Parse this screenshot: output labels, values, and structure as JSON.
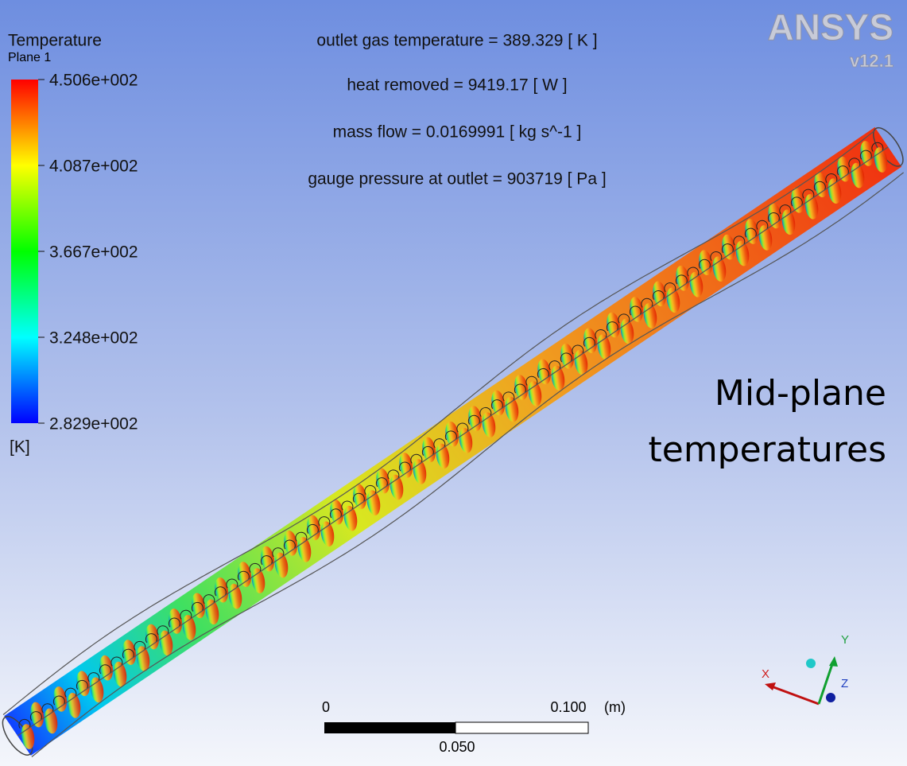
{
  "legend": {
    "title": "Temperature",
    "subtitle": "Plane 1",
    "labels": [
      "4.506e+002",
      "4.087e+002",
      "3.667e+002",
      "3.248e+002",
      "2.829e+002"
    ],
    "unit": "[K]"
  },
  "annotations": [
    "outlet gas temperature = 389.329 [ K ]",
    "heat removed = 9419.17 [ W ]",
    "mass flow = 0.0169991 [ kg s^-1 ]",
    "gauge pressure at outlet = 903719 [ Pa ]"
  ],
  "logo": {
    "name": "ANSYS",
    "version": "v12.1"
  },
  "scale_bar": {
    "start": "0",
    "end": "0.100",
    "unit": "(m)",
    "mid": "0.050"
  },
  "axes": {
    "x": "X",
    "y": "Y",
    "z": "Z"
  },
  "caption": [
    "Mid-plane",
    "temperatures"
  ]
}
